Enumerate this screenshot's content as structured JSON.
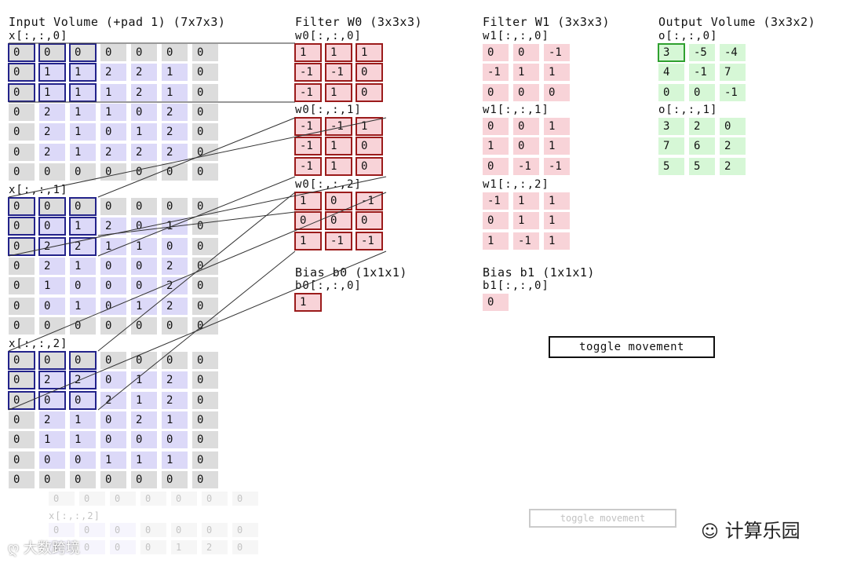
{
  "input": {
    "title": "Input Volume (+pad 1) (7x7x3)",
    "slices": [
      {
        "label": "x[:,:,0]",
        "grid": [
          [
            0,
            0,
            0,
            0,
            0,
            0,
            0
          ],
          [
            0,
            1,
            1,
            2,
            2,
            1,
            0
          ],
          [
            0,
            1,
            1,
            1,
            2,
            1,
            0
          ],
          [
            0,
            2,
            1,
            1,
            0,
            2,
            0
          ],
          [
            0,
            2,
            1,
            0,
            1,
            2,
            0
          ],
          [
            0,
            2,
            1,
            2,
            2,
            2,
            0
          ],
          [
            0,
            0,
            0,
            0,
            0,
            0,
            0
          ]
        ]
      },
      {
        "label": "x[:,:,1]",
        "grid": [
          [
            0,
            0,
            0,
            0,
            0,
            0,
            0
          ],
          [
            0,
            0,
            1,
            2,
            0,
            1,
            0
          ],
          [
            0,
            2,
            2,
            1,
            1,
            0,
            0
          ],
          [
            0,
            2,
            1,
            0,
            0,
            2,
            0
          ],
          [
            0,
            1,
            0,
            0,
            0,
            2,
            0
          ],
          [
            0,
            0,
            1,
            0,
            1,
            2,
            0
          ],
          [
            0,
            0,
            0,
            0,
            0,
            0,
            0
          ]
        ]
      },
      {
        "label": "x[:,:,2]",
        "grid": [
          [
            0,
            0,
            0,
            0,
            0,
            0,
            0
          ],
          [
            0,
            2,
            2,
            0,
            1,
            2,
            0
          ],
          [
            0,
            0,
            0,
            2,
            1,
            2,
            0
          ],
          [
            0,
            2,
            1,
            0,
            2,
            1,
            0
          ],
          [
            0,
            1,
            1,
            0,
            0,
            0,
            0
          ],
          [
            0,
            0,
            0,
            1,
            1,
            1,
            0
          ],
          [
            0,
            0,
            0,
            0,
            0,
            0,
            0
          ]
        ]
      }
    ]
  },
  "filter_w0": {
    "title": "Filter W0 (3x3x3)",
    "slices": [
      {
        "label": "w0[:,:,0]",
        "grid": [
          [
            1,
            1,
            1
          ],
          [
            -1,
            -1,
            0
          ],
          [
            -1,
            1,
            0
          ]
        ]
      },
      {
        "label": "w0[:,:,1]",
        "grid": [
          [
            -1,
            -1,
            1
          ],
          [
            -1,
            1,
            0
          ],
          [
            -1,
            1,
            0
          ]
        ]
      },
      {
        "label": "w0[:,:,2]",
        "grid": [
          [
            1,
            0,
            -1
          ],
          [
            0,
            0,
            0
          ],
          [
            1,
            -1,
            -1
          ]
        ]
      }
    ]
  },
  "filter_w1": {
    "title": "Filter W1 (3x3x3)",
    "slices": [
      {
        "label": "w1[:,:,0]",
        "grid": [
          [
            0,
            0,
            -1
          ],
          [
            -1,
            1,
            1
          ],
          [
            0,
            0,
            0
          ]
        ]
      },
      {
        "label": "w1[:,:,1]",
        "grid": [
          [
            0,
            0,
            1
          ],
          [
            1,
            0,
            1
          ],
          [
            0,
            -1,
            -1
          ]
        ]
      },
      {
        "label": "w1[:,:,2]",
        "grid": [
          [
            -1,
            1,
            1
          ],
          [
            0,
            1,
            1
          ],
          [
            1,
            -1,
            1
          ]
        ]
      }
    ]
  },
  "bias_b0": {
    "title": "Bias b0 (1x1x1)",
    "label": "b0[:,:,0]",
    "value": 1
  },
  "bias_b1": {
    "title": "Bias b1 (1x1x1)",
    "label": "b1[:,:,0]",
    "value": 0
  },
  "output": {
    "title": "Output Volume (3x3x2)",
    "slices": [
      {
        "label": "o[:,:,0]",
        "grid": [
          [
            3,
            -5,
            -4
          ],
          [
            4,
            -1,
            7
          ],
          [
            0,
            0,
            -1
          ]
        ]
      },
      {
        "label": "o[:,:,1]",
        "grid": [
          [
            3,
            2,
            0
          ],
          [
            7,
            6,
            2
          ],
          [
            5,
            5,
            2
          ]
        ]
      }
    ]
  },
  "toggle_label": "toggle movement",
  "ghost": {
    "label": "x[:,:,2]",
    "rows": [
      [
        0,
        0,
        0,
        0,
        0,
        0,
        0
      ],
      [
        0,
        0,
        0,
        0,
        0,
        0,
        0
      ],
      [
        0,
        0,
        0,
        0,
        1,
        2,
        0
      ]
    ]
  },
  "watermark": {
    "left": "大数跨境",
    "right": "计算乐园"
  },
  "colors": {
    "pad": "#dcdcdc",
    "input": "#dcd9f8",
    "weight": "#f8d3d8",
    "output": "#d6f7d6",
    "input_highlight": "#23238a",
    "weight_highlight": "#9b1b1b",
    "output_highlight": "#2fa02f"
  }
}
